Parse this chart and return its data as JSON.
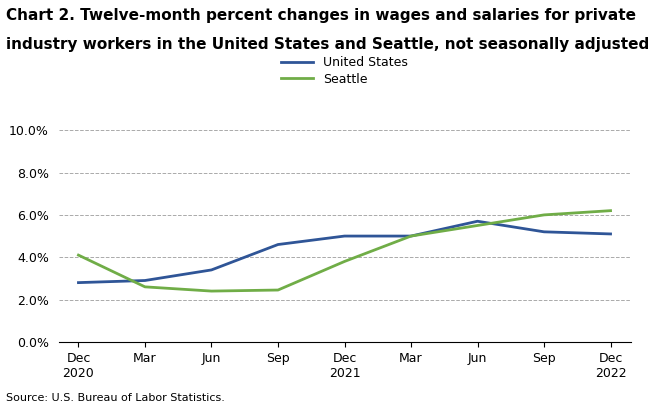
{
  "title_line1": "Chart 2. Twelve-month percent changes in wages and salaries for private",
  "title_line2": "industry workers in the United States and Seattle, not seasonally adjusted",
  "source": "Source: U.S. Bureau of Labor Statistics.",
  "x_labels": [
    "Dec\n2020",
    "Mar",
    "Jun",
    "Sep",
    "Dec\n2021",
    "Mar",
    "Jun",
    "Sep",
    "Dec\n2022"
  ],
  "us_values": [
    2.8,
    2.9,
    3.4,
    4.6,
    5.0,
    5.0,
    5.7,
    5.2,
    5.1
  ],
  "seattle_values": [
    4.1,
    2.6,
    2.4,
    2.45,
    3.8,
    5.0,
    5.5,
    6.0,
    6.2
  ],
  "us_color": "#2F5597",
  "seattle_color": "#70AD47",
  "ylim": [
    0.0,
    10.0
  ],
  "yticks": [
    0.0,
    2.0,
    4.0,
    6.0,
    8.0,
    10.0
  ],
  "line_width": 2.0,
  "legend_us": "United States",
  "legend_seattle": "Seattle",
  "background_color": "#ffffff",
  "grid_color": "#aaaaaa",
  "title_fontsize": 11,
  "label_fontsize": 9,
  "source_fontsize": 8
}
